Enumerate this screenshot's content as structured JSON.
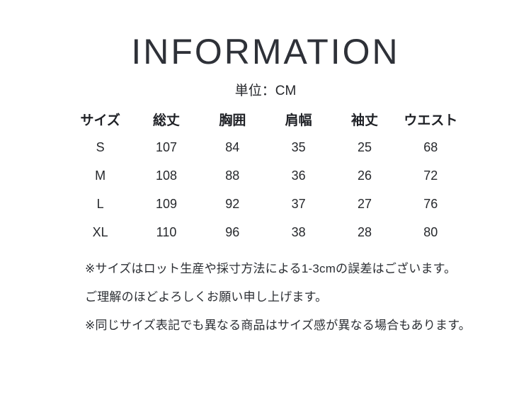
{
  "page": {
    "title": "INFORMATION",
    "unit_label": "単位：CM"
  },
  "table": {
    "headers": [
      "サイズ",
      "総丈",
      "胸囲",
      "肩幅",
      "袖丈",
      "ウエスト"
    ],
    "rows": [
      [
        "S",
        "107",
        "84",
        "35",
        "25",
        "68"
      ],
      [
        "M",
        "108",
        "88",
        "36",
        "26",
        "72"
      ],
      [
        "L",
        "109",
        "92",
        "37",
        "27",
        "76"
      ],
      [
        "XL",
        "110",
        "96",
        "38",
        "28",
        "80"
      ]
    ]
  },
  "notes": [
    "※サイズはロット生産や採寸方法による1-3cmの誤差はございます。",
    "ご理解のほどよろしくお願い申し上げます。",
    "※同じサイズ表記でも異なる商品はサイズ感が異なる場合もあります。"
  ],
  "colors": {
    "background": "#ffffff",
    "text": "#2b2e33"
  }
}
